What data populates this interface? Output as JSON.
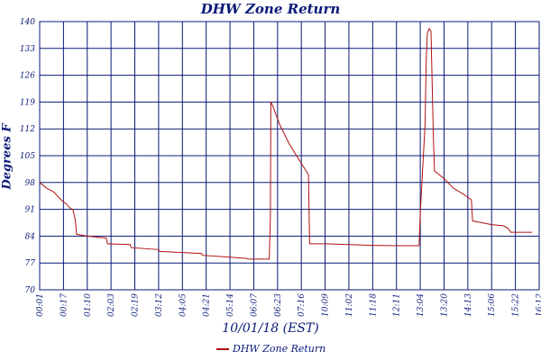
{
  "chart_data": {
    "type": "line",
    "title": "DHW Zone Return",
    "ylabel": "Degrees F",
    "xlabel": "10/01/18 (EST)",
    "ylim": [
      70,
      140
    ],
    "yticks": [
      70,
      77,
      84,
      91,
      98,
      105,
      112,
      119,
      126,
      133,
      140
    ],
    "xticks": [
      "00:01",
      "00:17",
      "01:10",
      "02:03",
      "02:19",
      "03:12",
      "04:05",
      "04:21",
      "05:14",
      "06:07",
      "06:23",
      "07:16",
      "10:09",
      "11:02",
      "11:18",
      "12:11",
      "13:04",
      "13:20",
      "14:13",
      "15:06",
      "15:22",
      "16:12"
    ],
    "grid": true,
    "legend": "bottom-center",
    "colors": {
      "series": "#b01010",
      "grid": "#0a1a78",
      "text": "#0a1a78"
    },
    "series": [
      {
        "name": "DHW Zone Return",
        "values": [
          [
            0,
            98
          ],
          [
            0.3,
            96.5
          ],
          [
            0.6,
            95.5
          ],
          [
            0.9,
            93.5
          ],
          [
            1.1,
            92.5
          ],
          [
            1.3,
            91.2
          ],
          [
            1.4,
            91
          ],
          [
            1.5,
            88
          ],
          [
            1.55,
            84.5
          ],
          [
            2.0,
            84
          ],
          [
            2.8,
            83.5
          ],
          [
            2.85,
            82
          ],
          [
            3.8,
            81.8
          ],
          [
            3.85,
            81
          ],
          [
            5.0,
            80.5
          ],
          [
            5.05,
            80
          ],
          [
            6.8,
            79.5
          ],
          [
            6.85,
            79
          ],
          [
            8.0,
            78.5
          ],
          [
            8.7,
            78.2
          ],
          [
            8.75,
            78
          ],
          [
            9.65,
            78
          ],
          [
            9.7,
            89
          ],
          [
            9.72,
            119
          ],
          [
            9.8,
            118
          ],
          [
            10.1,
            113
          ],
          [
            10.5,
            108
          ],
          [
            10.8,
            105
          ],
          [
            11.0,
            103
          ],
          [
            11.2,
            101
          ],
          [
            11.3,
            100
          ],
          [
            11.35,
            82
          ],
          [
            12.0,
            82
          ],
          [
            13.0,
            81.8
          ],
          [
            14.0,
            81.6
          ],
          [
            15.0,
            81.5
          ],
          [
            15.95,
            81.5
          ],
          [
            16.0,
            90
          ],
          [
            16.2,
            113
          ],
          [
            16.25,
            130
          ],
          [
            16.3,
            137
          ],
          [
            16.38,
            138.2
          ],
          [
            16.45,
            137.5
          ],
          [
            16.55,
            110
          ],
          [
            16.6,
            101
          ],
          [
            17.0,
            99
          ],
          [
            17.4,
            96.5
          ],
          [
            17.8,
            95
          ],
          [
            18.15,
            93.5
          ],
          [
            18.2,
            88
          ],
          [
            18.6,
            87.5
          ],
          [
            19.0,
            87
          ],
          [
            19.5,
            86.7
          ],
          [
            19.7,
            86
          ],
          [
            19.8,
            85
          ],
          [
            20.5,
            85
          ],
          [
            20.7,
            85
          ]
        ]
      }
    ]
  }
}
